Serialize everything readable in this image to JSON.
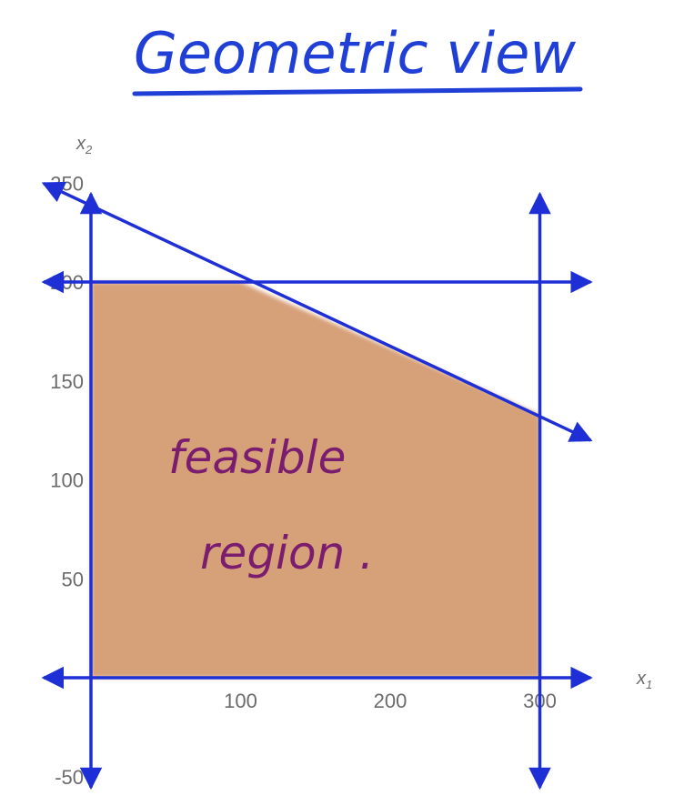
{
  "chart_data": {
    "type": "area",
    "title": "Geometric view",
    "xlabel": "x",
    "xlabel_sub": "1",
    "ylabel": "x",
    "ylabel_sub": "2",
    "xlim": [
      -45,
      345
    ],
    "ylim": [
      -50,
      250
    ],
    "x_ticks": [
      100,
      200,
      300
    ],
    "x_tick_labels": [
      "100",
      "200",
      "300"
    ],
    "y_ticks": [
      -50,
      50,
      100,
      150,
      200,
      250
    ],
    "y_tick_labels": [
      "-50",
      "50",
      "100",
      "150",
      "200",
      "250"
    ],
    "feasible_region": {
      "label_lines": [
        "feasible",
        "region ."
      ],
      "vertices": [
        [
          0,
          0
        ],
        [
          300,
          0
        ],
        [
          300,
          133
        ],
        [
          100,
          200
        ],
        [
          0,
          200
        ]
      ],
      "fill_color": "#d6a079"
    },
    "constraint_lines": [
      {
        "kind": "vertical",
        "x": 0,
        "from": -50,
        "to": 250
      },
      {
        "kind": "vertical",
        "x": 300,
        "from": -50,
        "to": 250
      },
      {
        "kind": "horizontal",
        "y": 0,
        "from": -45,
        "to": 340
      },
      {
        "kind": "horizontal",
        "y": 200,
        "from": -45,
        "to": 340
      },
      {
        "kind": "slanted",
        "points": [
          [
            -45,
            248
          ],
          [
            340,
            120
          ]
        ]
      }
    ],
    "line_color": "#1f2fd6",
    "grid": false
  },
  "colors": {
    "accent": "#1f2fd6",
    "annotation": "#7a1d6e",
    "region": "#d6a079",
    "tick_text": "#6b6b6b"
  }
}
